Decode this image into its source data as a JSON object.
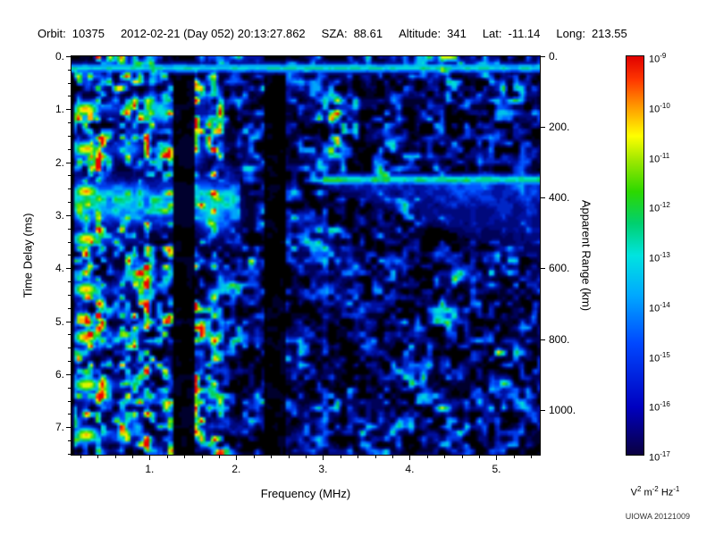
{
  "header": {
    "fields": [
      {
        "label": "Orbit:",
        "value": "10375"
      },
      {
        "label": "",
        "value": "2012-02-21 (Day 052) 20:13:27.862"
      },
      {
        "label": "SZA:",
        "value": "88.61"
      },
      {
        "label": "Altitude:",
        "value": "341"
      },
      {
        "label": "Lat:",
        "value": "-11.14"
      },
      {
        "label": "Long:",
        "value": "213.55"
      }
    ]
  },
  "footer": {
    "credit": "UIOWA 20121009"
  },
  "chart_data": {
    "type": "heatmap",
    "description": "Radar sounder ionogram spectrogram: spectral density vs frequency and time delay",
    "xlabel": "Frequency (MHz)",
    "ylabel_left": "Time Delay (ms)",
    "ylabel_right": "Apparent Range (km)",
    "x_range_mhz": [
      0.1,
      5.5
    ],
    "x_major_ticks": [
      1,
      2,
      3,
      4,
      5
    ],
    "x_tick_labels": [
      "1.",
      "2.",
      "3.",
      "4.",
      "5."
    ],
    "x_minor_step": 0.2,
    "y_range_ms": [
      0,
      7.52
    ],
    "y_major_ticks": [
      0,
      1,
      2,
      3,
      4,
      5,
      6,
      7
    ],
    "y_tick_labels": [
      "0.",
      "1.",
      "2.",
      "3.",
      "4.",
      "5.",
      "6.",
      "7."
    ],
    "y_minor_step": 0.25,
    "right_axis_ticks_km": [
      0,
      200,
      400,
      600,
      800,
      1000
    ],
    "right_axis_tick_labels": [
      "0.",
      "200.",
      "400.",
      "600.",
      "800.",
      "1000."
    ],
    "right_axis_km_per_ms": 149.9,
    "colorbar": {
      "scale": "log10",
      "top_exponent": -9,
      "bottom_exponent": -17,
      "tick_exponents": [
        -9,
        -10,
        -11,
        -12,
        -13,
        -14,
        -15,
        -16,
        -17
      ],
      "units_parts": [
        {
          "base": "V",
          "exp": "2"
        },
        {
          "base": " m",
          "exp": "-2"
        },
        {
          "base": " Hz",
          "exp": "-1"
        }
      ],
      "gradient_stops": [
        {
          "pos": 0.0,
          "c": "#0a0040"
        },
        {
          "pos": 0.12,
          "c": "#0000c0"
        },
        {
          "pos": 0.28,
          "c": "#0048ff"
        },
        {
          "pos": 0.4,
          "c": "#00a8ff"
        },
        {
          "pos": 0.5,
          "c": "#00e4e0"
        },
        {
          "pos": 0.58,
          "c": "#00d070"
        },
        {
          "pos": 0.66,
          "c": "#2cd800"
        },
        {
          "pos": 0.74,
          "c": "#a0e800"
        },
        {
          "pos": 0.8,
          "c": "#ffff00"
        },
        {
          "pos": 0.88,
          "c": "#ff9000"
        },
        {
          "pos": 0.94,
          "c": "#ff3800"
        },
        {
          "pos": 1.0,
          "c": "#e00000"
        }
      ]
    },
    "colormap": [
      {
        "v": 0.0,
        "c": "#000000"
      },
      {
        "v": 0.08,
        "c": "#000050"
      },
      {
        "v": 0.18,
        "c": "#0010a0"
      },
      {
        "v": 0.3,
        "c": "#0048ff"
      },
      {
        "v": 0.4,
        "c": "#00a0ff"
      },
      {
        "v": 0.5,
        "c": "#00e0d8"
      },
      {
        "v": 0.58,
        "c": "#00cc66"
      },
      {
        "v": 0.66,
        "c": "#33dd00"
      },
      {
        "v": 0.74,
        "c": "#a8ee00"
      },
      {
        "v": 0.8,
        "c": "#ffff00"
      },
      {
        "v": 0.88,
        "c": "#ff9900"
      },
      {
        "v": 0.94,
        "c": "#ff4400"
      },
      {
        "v": 1.0,
        "c": "#ee0000"
      }
    ],
    "noise": {
      "seed": 20121009,
      "dense_band_max_mhz": 1.85,
      "mid_band_max_mhz": 3.05
    },
    "features": [
      {
        "name": "low-freq-echo-band",
        "type": "band",
        "t_ms": 2.75,
        "sigma_ms": 0.45,
        "f0": 0.1,
        "f1": 2.05,
        "intensity": 0.62
      },
      {
        "name": "plasma-harmonic-spots",
        "type": "spots",
        "f_mhz": 0.27,
        "delays_ms": [
          1.0,
          1.75,
          2.55,
          3.45,
          4.4,
          5.3,
          6.2,
          7.15
        ],
        "rf": 0.16,
        "rt": 0.15,
        "intensity": 0.95,
        "streak_f_end": 0.95,
        "streak_intensity": 0.5
      },
      {
        "name": "extra-echo-blobs",
        "type": "blobs",
        "blobs": [
          [
            1.15,
            1.05,
            0.22,
            0.28,
            0.55
          ],
          [
            1.45,
            1.8,
            0.2,
            0.45,
            0.5
          ],
          [
            1.75,
            2.9,
            0.28,
            0.5,
            0.58
          ],
          [
            0.75,
            1.75,
            0.2,
            0.2,
            0.5
          ]
        ]
      },
      {
        "name": "quiet-band-1",
        "type": "quiet_vband",
        "f0": 1.28,
        "f1": 1.52
      },
      {
        "name": "quiet-band-2",
        "type": "quiet_vband",
        "f0": 2.33,
        "f1": 2.56
      },
      {
        "name": "left-edge-dark",
        "type": "quiet_vband",
        "f0": 0.1,
        "f1": 0.145
      },
      {
        "name": "ionospheric-echo-trace",
        "type": "hline",
        "t_ms": 2.33,
        "sigma_ms": 0.1,
        "f0": 3.0,
        "f1": 5.5,
        "intensity": 0.62
      },
      {
        "name": "diffuse-echo-haze",
        "type": "wedge",
        "t_top_ms": 2.33,
        "f0": 3.05,
        "f1": 5.5,
        "depth0_ms": 0.2,
        "depth_slope": 0.55,
        "intensity": 0.33
      },
      {
        "name": "transmit-pulse-line",
        "type": "hline",
        "t_ms": 0.22,
        "sigma_ms": 0.09,
        "f0": 0.1,
        "f1": 5.5,
        "intensity": 0.55
      }
    ]
  }
}
